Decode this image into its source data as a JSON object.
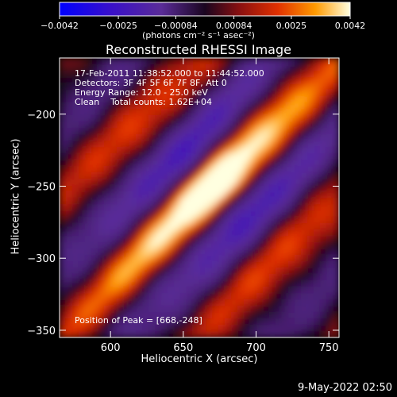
{
  "chart_data": {
    "type": "heatmap",
    "title": "Reconstructed RHESSI Image",
    "xlabel": "Heliocentric X (arcsec)",
    "ylabel": "Heliocentric Y (arcsec)",
    "xlim": [
      565,
      757
    ],
    "ylim": [
      -355,
      -161
    ],
    "xticks": [
      "600",
      "650",
      "700",
      "750"
    ],
    "yticks": [
      "-350",
      "-300",
      "-250",
      "-200"
    ],
    "colorbar": {
      "ticks": [
        "-0.0042",
        "-0.0025",
        "-0.00084",
        "0.00084",
        "0.0025",
        "0.0042"
      ],
      "label": "(photons cm⁻² s⁻¹ asec⁻²)",
      "range": [
        -0.0042,
        0.0042
      ]
    },
    "annotations": [
      "17-Feb-2011 11:38:52.000 to 11:44:52.000",
      "Detectors: 3F 4F 5F 6F 7F 8F, Att 0",
      "Energy Range: 12.0 - 25.0 keV",
      "Clean    Total counts: 1.62E+04"
    ],
    "peak_label": "Position of Peak = [668,-248]",
    "peak": {
      "x": 668,
      "y": -248,
      "value": 0.0042
    },
    "grid": false
  },
  "timestamp": "9-May-2022 02:50"
}
